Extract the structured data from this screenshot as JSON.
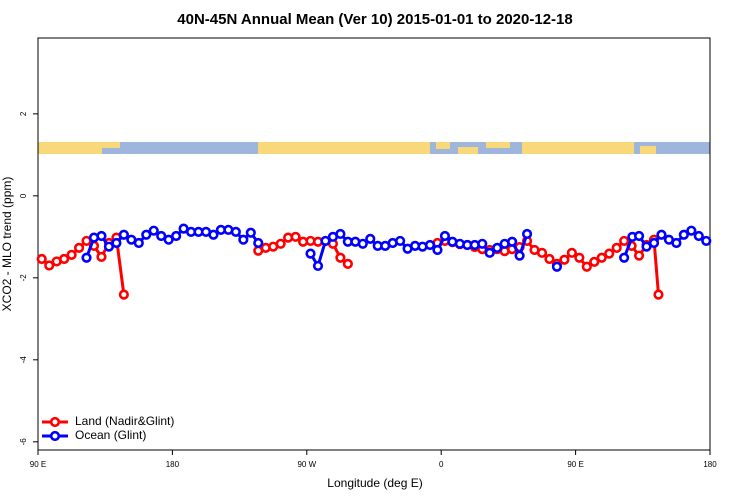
{
  "chart_data": {
    "type": "line",
    "title": "40N-45N Annual Mean (Ver 10)   2015-01-01 to 2020-12-18",
    "x_label": "Longitude (deg E)",
    "y_label": "XCO2 - MLO trend (ppm)",
    "xlim": [
      90,
      540
    ],
    "ylim": [
      -6.2,
      3.85
    ],
    "xticks": [
      {
        "value": 90,
        "label": "90 E"
      },
      180,
      {
        "value": 270,
        "label": "90 W"
      },
      {
        "value": 360,
        "label": "0"
      },
      {
        "value": 450,
        "label": "90 E"
      },
      {
        "value": 540,
        "label": "180"
      }
    ],
    "yticks": [
      -6,
      -4,
      -2,
      0,
      2
    ],
    "grid": false,
    "legend": "bottomleft",
    "series": [
      {
        "name": "Land (Nadir&Glint)",
        "color": "#ff0000",
        "x": [
          92.5,
          97.5,
          102.5,
          107.5,
          112.5,
          117.5,
          122.5,
          127.5,
          132.5,
          137.5,
          142.5,
          147.5,
          192.5,
          237.5,
          242.5,
          247.5,
          252.5,
          257.5,
          262.5,
          267.5,
          272.5,
          277.5,
          282.5,
          287.5,
          292.5,
          297.5,
          327.5,
          357.5,
          362.5,
          367.5,
          372.5,
          377.5,
          382.5,
          387.5,
          392.5,
          397.5,
          402.5,
          407.5,
          412.5,
          417.5,
          422.5,
          427.5,
          432.5,
          437.5,
          442.5,
          447.5,
          452.5,
          457.5,
          462.5,
          467.5,
          472.5,
          477.5,
          482.5,
          487.5,
          492.5,
          497.5,
          502.5,
          505.5
        ],
        "values": [
          -1.54,
          -1.7,
          -1.6,
          -1.54,
          -1.44,
          -1.27,
          -1.1,
          -1.22,
          -1.49,
          -1.15,
          -1.02,
          -2.41,
          null,
          -1.34,
          -1.27,
          -1.24,
          -1.17,
          -1.02,
          -1.0,
          -1.12,
          -1.1,
          -1.12,
          -1.1,
          -1.17,
          -1.51,
          -1.66,
          null,
          -1.15,
          -1.1,
          -1.13,
          -1.18,
          -1.2,
          -1.25,
          -1.3,
          -1.32,
          -1.3,
          -1.35,
          -1.3,
          -1.25,
          -1.1,
          -1.32,
          -1.39,
          -1.54,
          -1.66,
          -1.56,
          -1.39,
          -1.51,
          -1.73,
          -1.61,
          -1.51,
          -1.41,
          -1.27,
          -1.1,
          -1.22,
          -1.46,
          -1.2,
          -1.07,
          -2.41
        ]
      },
      {
        "name": "Ocean (Glint)",
        "color": "#0000ff",
        "x": [
          122.5,
          127.5,
          132.5,
          137.5,
          142.5,
          147.5,
          152.5,
          157.5,
          162.5,
          167.5,
          172.5,
          177.5,
          182.5,
          187.5,
          192.5,
          197.5,
          202.5,
          207.5,
          212.5,
          217.5,
          222.5,
          227.5,
          232.5,
          237.5,
          255,
          272.5,
          277.5,
          282.5,
          287.5,
          292.5,
          297.5,
          302.5,
          307.5,
          312.5,
          317.5,
          322.5,
          327.5,
          332.5,
          337.5,
          342.5,
          347.5,
          352.5,
          357.5,
          362.5,
          367.5,
          372.5,
          377.5,
          382.5,
          387.5,
          392.5,
          397.5,
          402.5,
          407.5,
          412.5,
          417.5,
          427.5,
          437.5,
          460,
          482.5,
          488,
          492.5,
          497.5,
          502.5,
          507.5,
          512.5,
          517.5,
          522.5,
          527.5,
          532.5,
          537.5
        ],
        "values": [
          -1.51,
          -1.02,
          -0.98,
          -1.24,
          -1.15,
          -0.95,
          -1.07,
          -1.15,
          -0.95,
          -0.85,
          -0.98,
          -1.07,
          -0.98,
          -0.8,
          -0.88,
          -0.88,
          -0.88,
          -0.95,
          -0.83,
          -0.83,
          -0.88,
          -1.07,
          -0.9,
          -1.15,
          null,
          -1.41,
          -1.71,
          -1.1,
          -1.0,
          -0.93,
          -1.12,
          -1.12,
          -1.17,
          -1.05,
          -1.22,
          -1.22,
          -1.15,
          -1.1,
          -1.29,
          -1.22,
          -1.24,
          -1.2,
          -1.32,
          -0.98,
          -1.12,
          -1.17,
          -1.2,
          -1.2,
          -1.17,
          -1.39,
          -1.27,
          -1.17,
          -1.12,
          -1.46,
          -0.93,
          null,
          -1.73,
          null,
          -1.51,
          -1.0,
          -0.98,
          -1.24,
          -1.15,
          -0.95,
          -1.07,
          -1.15,
          -0.95,
          -0.85,
          -0.98,
          -1.1
        ]
      }
    ]
  }
}
